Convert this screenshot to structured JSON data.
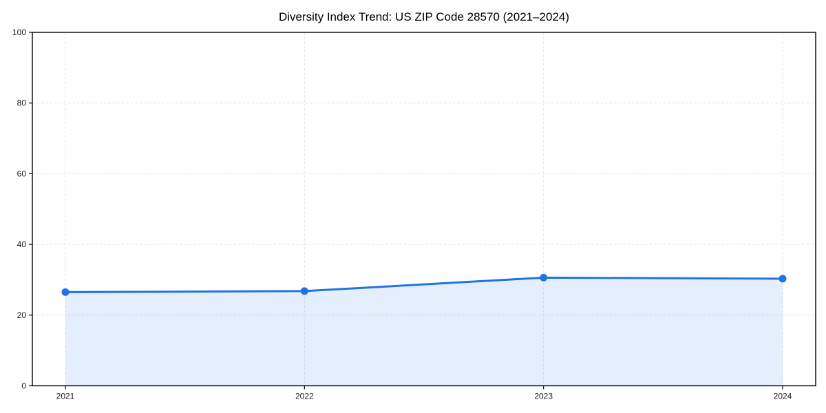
{
  "chart_data": {
    "type": "area",
    "title": "Diversity Index Trend: US ZIP Code 28570 (2021–2024)",
    "categories": [
      "2021",
      "2022",
      "2023",
      "2024"
    ],
    "values": [
      26.5,
      26.8,
      30.6,
      30.3
    ],
    "xlabel": "",
    "ylabel": "",
    "ylim": [
      0,
      100
    ],
    "yticks": [
      0,
      20,
      40,
      60,
      80,
      100
    ],
    "grid": true,
    "grid_style": "dashed",
    "legend_position": "none",
    "line_color": "#2173e4",
    "marker_color": "#2173e4",
    "fill_color": "rgba(33,115,228,0.12)",
    "grid_color": "#e4e4e4",
    "axis_color": "#000000",
    "tick_label_color": "#1a1a1a",
    "background_color": "#ffffff"
  }
}
